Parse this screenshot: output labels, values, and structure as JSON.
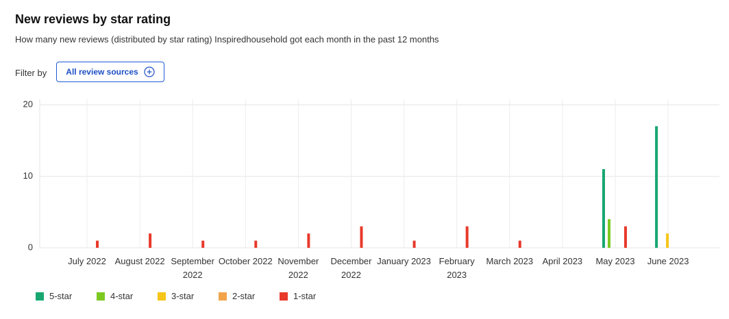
{
  "title": "New reviews by star rating",
  "subtitle": "How many new reviews (distributed by star rating) Inspiredhousehold got each month in the past 12 months",
  "filter_label": "Filter by",
  "filter_button": "All review sources",
  "chart_data": {
    "type": "bar",
    "categories": [
      "July 2022",
      "August 2022",
      "September 2022",
      "October 2022",
      "November 2022",
      "December 2022",
      "January 2023",
      "February 2023",
      "March 2023",
      "April 2023",
      "May 2023",
      "June 2023"
    ],
    "series": [
      {
        "name": "5-star",
        "color": "#18a672",
        "values": [
          0,
          0,
          0,
          0,
          0,
          0,
          0,
          0,
          0,
          0,
          11,
          17
        ]
      },
      {
        "name": "4-star",
        "color": "#7cc922",
        "values": [
          0,
          0,
          0,
          0,
          0,
          0,
          0,
          0,
          0,
          0,
          4,
          0
        ]
      },
      {
        "name": "3-star",
        "color": "#f5c518",
        "values": [
          0,
          0,
          0,
          0,
          0,
          0,
          0,
          0,
          0,
          0,
          0,
          2
        ]
      },
      {
        "name": "2-star",
        "color": "#f2a44b",
        "values": [
          0,
          0,
          0,
          0,
          0,
          0,
          0,
          0,
          0,
          0,
          0,
          0
        ]
      },
      {
        "name": "1-star",
        "color": "#e8392b",
        "values": [
          1,
          2,
          1,
          1,
          2,
          3,
          1,
          3,
          1,
          0,
          3,
          0
        ]
      }
    ],
    "ylim": [
      0,
      20
    ],
    "yticks": [
      0,
      10,
      20
    ],
    "grid": true
  }
}
